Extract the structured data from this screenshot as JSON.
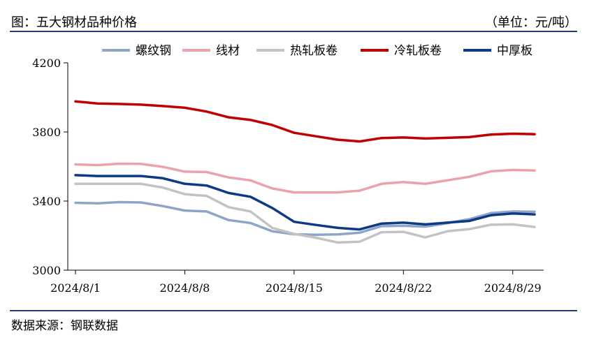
{
  "header": {
    "title": "图：五大钢材品种价格",
    "unit": "（单位：元/吨）"
  },
  "footer": {
    "source": "数据来源：钢联数据"
  },
  "colors": {
    "rebar": "#8ea5c8",
    "wire": "#eaa2ae",
    "hot_rolled": "#c3c3c3",
    "cold_rolled": "#c00000",
    "plate": "#0d3a85",
    "axis": "#000000",
    "rule": "#1f3d7a"
  },
  "chart_data": {
    "type": "line",
    "title": "五大钢材品种价格",
    "unit": "元/吨",
    "xlabel": "",
    "ylabel": "",
    "ylim": [
      3000,
      4200
    ],
    "yticks": [
      3000,
      3400,
      3800,
      4200
    ],
    "ytick_labels": [
      "3000",
      "3400",
      "3800",
      "4200"
    ],
    "x": [
      "2024/8/1",
      "2024/8/2",
      "2024/8/5",
      "2024/8/6",
      "2024/8/7",
      "2024/8/8",
      "2024/8/9",
      "2024/8/12",
      "2024/8/13",
      "2024/8/14",
      "2024/8/15",
      "2024/8/16",
      "2024/8/19",
      "2024/8/20",
      "2024/8/21",
      "2024/8/22",
      "2024/8/23",
      "2024/8/26",
      "2024/8/27",
      "2024/8/28",
      "2024/8/29",
      "2024/8/30"
    ],
    "xtick_labels": [
      "2024/8/1",
      "2024/8/8",
      "2024/8/15",
      "2024/8/22",
      "2024/8/29"
    ],
    "legend_position": "top",
    "series": [
      {
        "name": "螺纹钢",
        "color_key": "rebar",
        "values": [
          3390,
          3387,
          3394,
          3392,
          3371,
          3345,
          3340,
          3290,
          3273,
          3225,
          3208,
          3205,
          3207,
          3217,
          3255,
          3257,
          3252,
          3272,
          3295,
          3330,
          3340,
          3338
        ]
      },
      {
        "name": "线材",
        "color_key": "wire",
        "values": [
          3612,
          3608,
          3616,
          3615,
          3598,
          3570,
          3568,
          3537,
          3520,
          3473,
          3450,
          3450,
          3450,
          3460,
          3500,
          3510,
          3500,
          3520,
          3540,
          3572,
          3580,
          3577
        ]
      },
      {
        "name": "热轧板卷",
        "color_key": "hot_rolled",
        "values": [
          3500,
          3500,
          3500,
          3500,
          3478,
          3440,
          3430,
          3365,
          3340,
          3245,
          3210,
          3188,
          3160,
          3165,
          3220,
          3222,
          3190,
          3225,
          3237,
          3263,
          3265,
          3250
        ]
      },
      {
        "name": "冷轧板卷",
        "color_key": "cold_rolled",
        "values": [
          3977,
          3965,
          3962,
          3958,
          3950,
          3940,
          3918,
          3885,
          3870,
          3840,
          3795,
          3775,
          3755,
          3745,
          3765,
          3768,
          3762,
          3766,
          3770,
          3785,
          3790,
          3787
        ]
      },
      {
        "name": "中厚板",
        "color_key": "plate",
        "values": [
          3550,
          3545,
          3545,
          3545,
          3532,
          3500,
          3490,
          3447,
          3425,
          3360,
          3280,
          3262,
          3245,
          3236,
          3270,
          3275,
          3265,
          3275,
          3285,
          3318,
          3328,
          3323
        ]
      }
    ]
  }
}
